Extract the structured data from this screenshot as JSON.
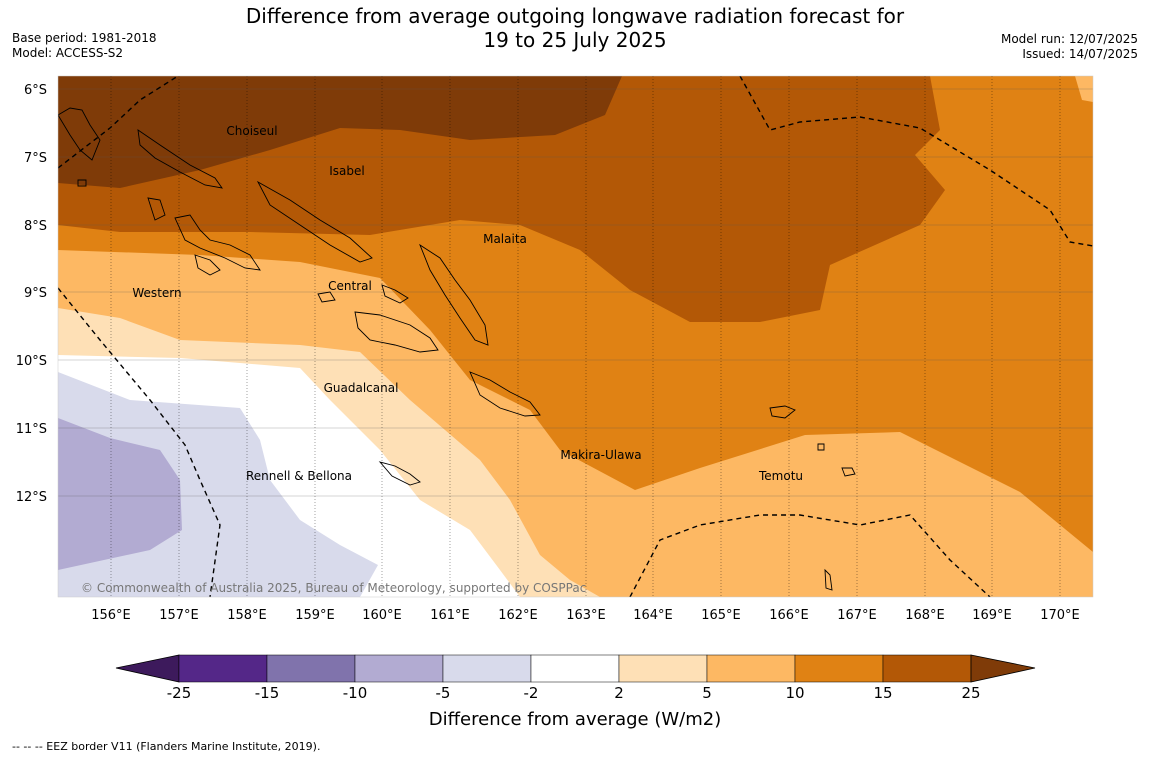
{
  "header": {
    "title_line1": "Difference from average outgoing longwave radiation forecast for",
    "title_line2": "19 to 25 July 2025",
    "base_period": "Base period: 1981-2018",
    "model": "Model: ACCESS-S2",
    "model_run": "Model run: 12/07/2025",
    "issued": "Issued: 14/07/2025"
  },
  "map": {
    "lat_labels": [
      "6°S",
      "7°S",
      "8°S",
      "9°S",
      "10°S",
      "11°S",
      "12°S"
    ],
    "lon_labels": [
      "156°E",
      "157°E",
      "158°E",
      "159°E",
      "160°E",
      "161°E",
      "162°E",
      "163°E",
      "164°E",
      "165°E",
      "166°E",
      "167°E",
      "168°E",
      "169°E",
      "170°E"
    ],
    "regions": [
      "Choiseul",
      "Isabel",
      "Malaita",
      "Western",
      "Central",
      "Guadalcanal",
      "Makira-Ulawa",
      "Temotu",
      "Rennell & Bellona"
    ],
    "copyright": "© Commonwealth of Australia 2025, Bureau of Meteorology, supported by COSPPac"
  },
  "colorbar": {
    "ticks": [
      "-25",
      "-15",
      "-10",
      "-5",
      "-2",
      "2",
      "5",
      "10",
      "15",
      "25"
    ],
    "colors": [
      "#3d1a5c",
      "#542788",
      "#8073ac",
      "#b2abd2",
      "#d8daeb",
      "#ffffff",
      "#fee0b6",
      "#fdb863",
      "#e08214",
      "#b35806",
      "#7f3b08"
    ],
    "title": "Difference from average (W/m2)"
  },
  "footnote": "--  --  -- EEZ border V11 (Flanders Marine Institute, 2019)."
}
